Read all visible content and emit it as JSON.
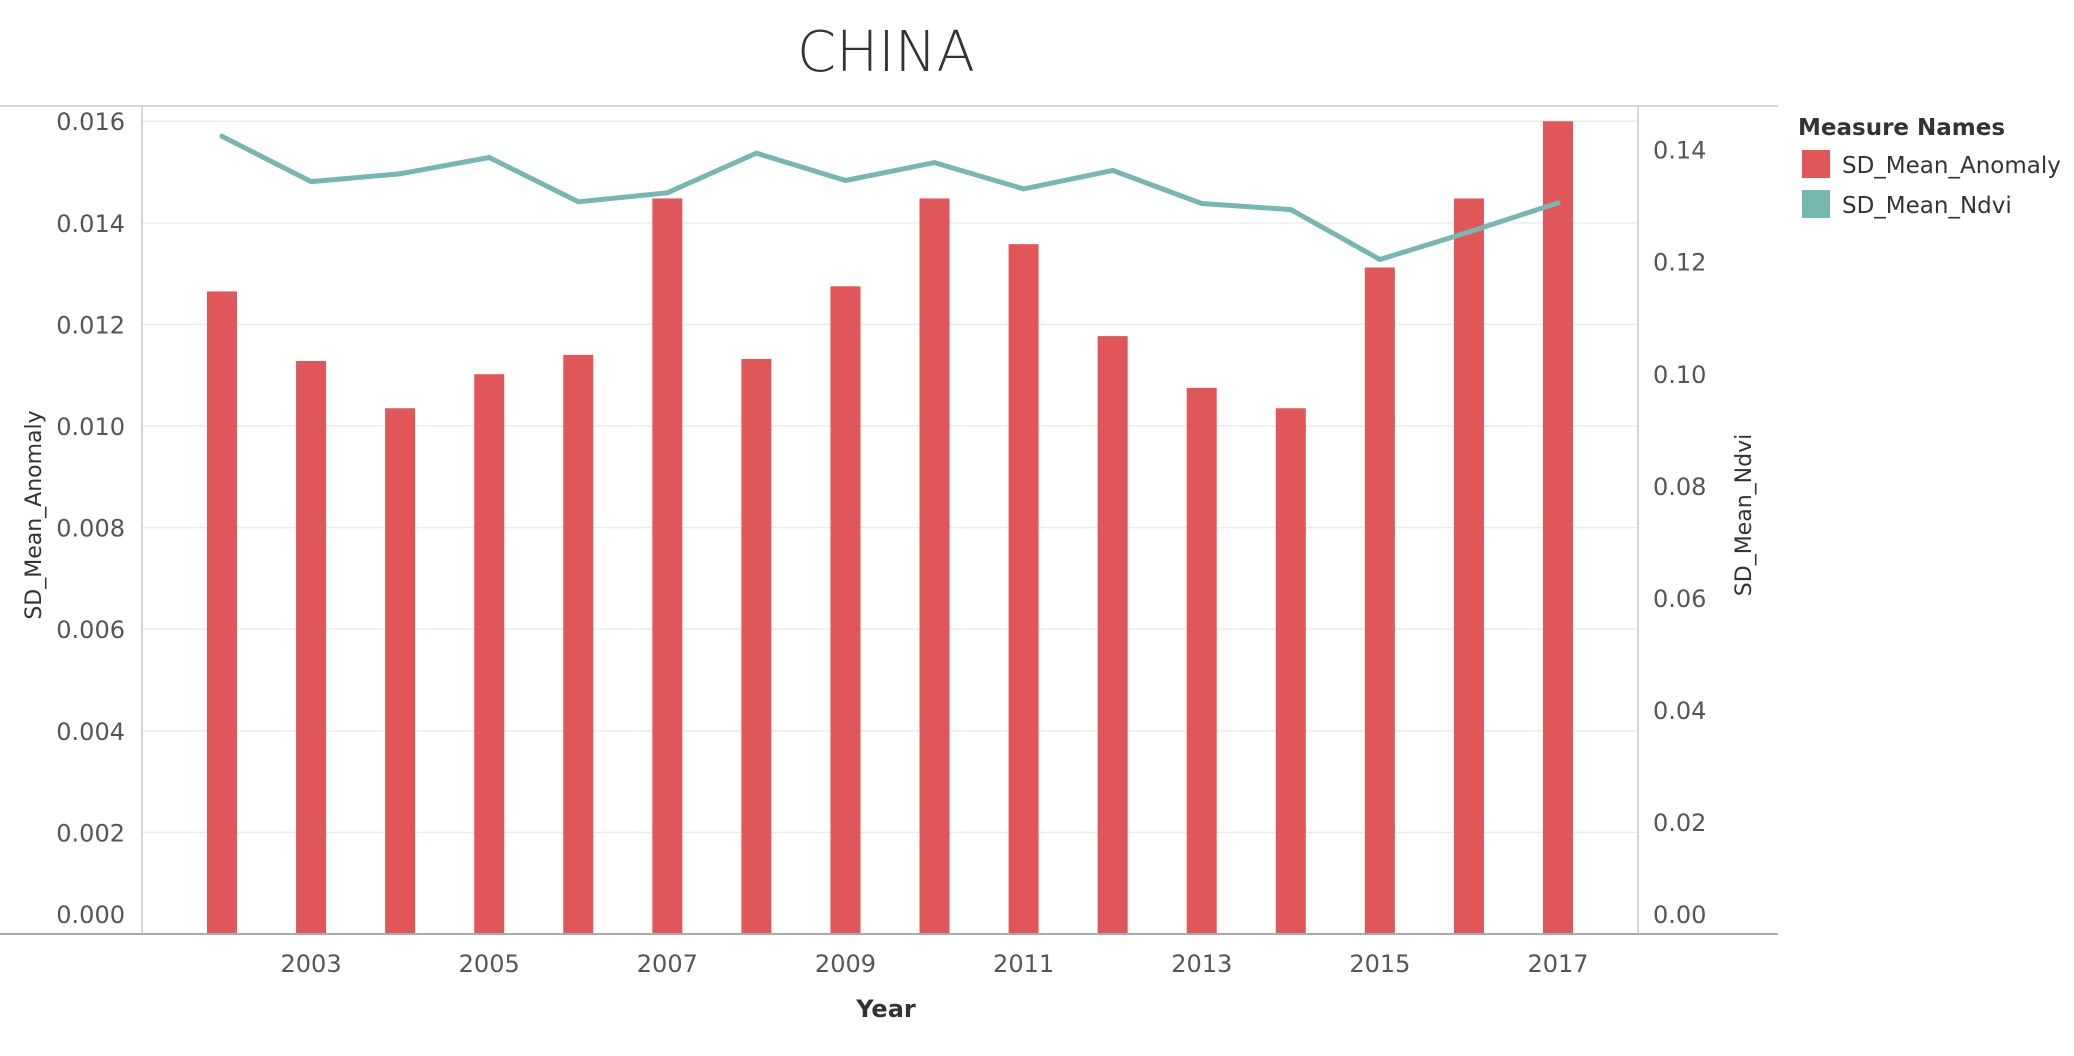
{
  "colors": {
    "bar": "#e15759",
    "line": "#76b7b2",
    "grid": "#ececec",
    "axis": "#c8c8c8",
    "text": "#555555"
  },
  "chart_data": {
    "type": "bar",
    "title": "CHINA",
    "xlabel": "Year",
    "ylabel": "SD_Mean_Anomaly",
    "y2label": "SD_Mean_Ndvi",
    "ylim": [
      0,
      0.0163
    ],
    "y2lim": [
      0,
      0.1478
    ],
    "yticks": [
      "0.000",
      "0.002",
      "0.004",
      "0.006",
      "0.008",
      "0.010",
      "0.012",
      "0.014",
      "0.016"
    ],
    "y2ticks": [
      "0.00",
      "0.02",
      "0.04",
      "0.06",
      "0.08",
      "0.10",
      "0.12",
      "0.14"
    ],
    "x": [
      2002,
      2003,
      2004,
      2005,
      2006,
      2007,
      2008,
      2009,
      2010,
      2011,
      2012,
      2013,
      2014,
      2015,
      2016,
      2017
    ],
    "xticks": [
      "2003",
      "2005",
      "2007",
      "2009",
      "2011",
      "2013",
      "2015",
      "2017"
    ],
    "legend": {
      "title": "Measure Names",
      "position": "right"
    },
    "grid": true,
    "series": [
      {
        "name": "SD_Mean_Anomaly",
        "type": "bar",
        "axis": "left",
        "values": [
          0.01265,
          0.01128,
          0.01035,
          0.01102,
          0.0114,
          0.01448,
          0.01132,
          0.01275,
          0.01448,
          0.01358,
          0.01177,
          0.01075,
          0.01035,
          0.01312,
          0.01448,
          0.016
        ]
      },
      {
        "name": "SD_Mean_Ndvi",
        "type": "line",
        "axis": "right",
        "values": [
          0.1424,
          0.1343,
          0.1357,
          0.1386,
          0.1307,
          0.1323,
          0.1394,
          0.1345,
          0.1377,
          0.133,
          0.1363,
          0.1304,
          0.1293,
          0.1204,
          0.1253,
          0.1305
        ]
      }
    ]
  }
}
